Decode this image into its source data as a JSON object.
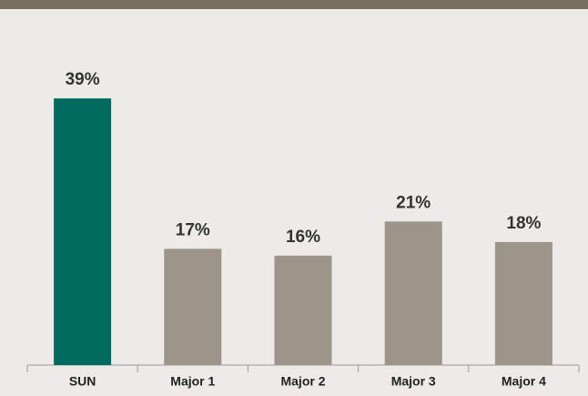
{
  "chart_data": {
    "type": "bar",
    "categories": [
      "SUN",
      "Major 1",
      "Major 2",
      "Major 3",
      "Major 4"
    ],
    "values": [
      39,
      17,
      16,
      21,
      18
    ],
    "value_labels": [
      "39%",
      "17%",
      "16%",
      "21%",
      "18%"
    ],
    "colors": [
      "#006b5e",
      "#9e958a",
      "#9e958a",
      "#9e958a",
      "#9e958a"
    ]
  }
}
